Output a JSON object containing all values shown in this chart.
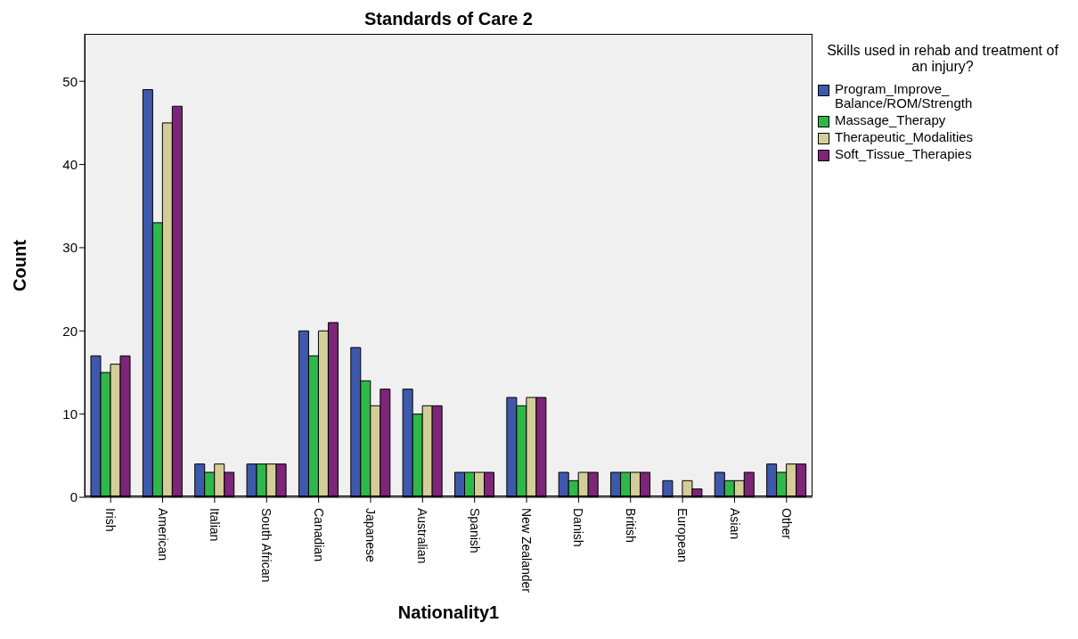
{
  "chart_data": {
    "type": "bar",
    "title": "Standards of Care 2",
    "xlabel": "Nationality1",
    "ylabel": "Count",
    "legend_title": "Skills used in rehab and treatment of an injury?",
    "categories": [
      "Irish",
      "American",
      "Italian",
      "South African",
      "Canadian",
      "Japanese",
      "Australian",
      "Spanish",
      "New Zealander",
      "Danish",
      "British",
      "European",
      "Asian",
      "Other"
    ],
    "series": [
      {
        "name": "Program_Improve_Balance/ROM/Strength",
        "color": "#3e58ac",
        "values": [
          17,
          49,
          4,
          4,
          20,
          18,
          13,
          3,
          12,
          3,
          3,
          2,
          3,
          4
        ]
      },
      {
        "name": "Massage_Therapy",
        "color": "#2fb84a",
        "values": [
          15,
          33,
          3,
          4,
          17,
          14,
          10,
          3,
          11,
          2,
          3,
          0,
          2,
          3
        ]
      },
      {
        "name": "Therapeutic_Modalities",
        "color": "#d3ce97",
        "values": [
          16,
          45,
          4,
          4,
          20,
          11,
          11,
          3,
          12,
          3,
          3,
          2,
          2,
          4
        ]
      },
      {
        "name": "Soft_Tissue_Therapies",
        "color": "#7e2479",
        "values": [
          17,
          47,
          3,
          4,
          21,
          13,
          11,
          3,
          12,
          3,
          3,
          1,
          3,
          4
        ]
      }
    ],
    "ylim": [
      0,
      55.7
    ],
    "yticks": [
      0,
      10,
      20,
      30,
      40,
      50
    ],
    "grid": false,
    "legend": "top right"
  }
}
